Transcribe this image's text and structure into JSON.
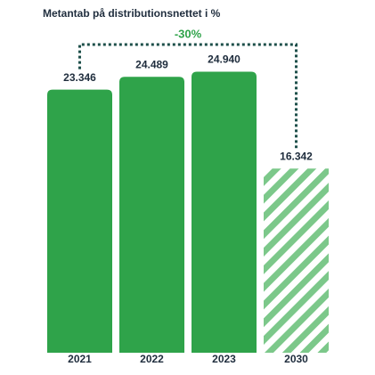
{
  "chart_data": {
    "type": "bar",
    "title": "Metantab på distributionsnettet i %",
    "categories": [
      "2021",
      "2022",
      "2023",
      "2030"
    ],
    "values": [
      23.346,
      24.489,
      24.94,
      16.342
    ],
    "value_labels": [
      "23.346",
      "24.489",
      "24.940",
      "16.342"
    ],
    "colors": [
      "#2fa34a",
      "#2fa34a",
      "#2fa34a",
      "#7cc88a"
    ],
    "hatch": [
      false,
      false,
      false,
      true
    ],
    "annotation": "-30%",
    "annotation_color": "#2fa34a"
  }
}
